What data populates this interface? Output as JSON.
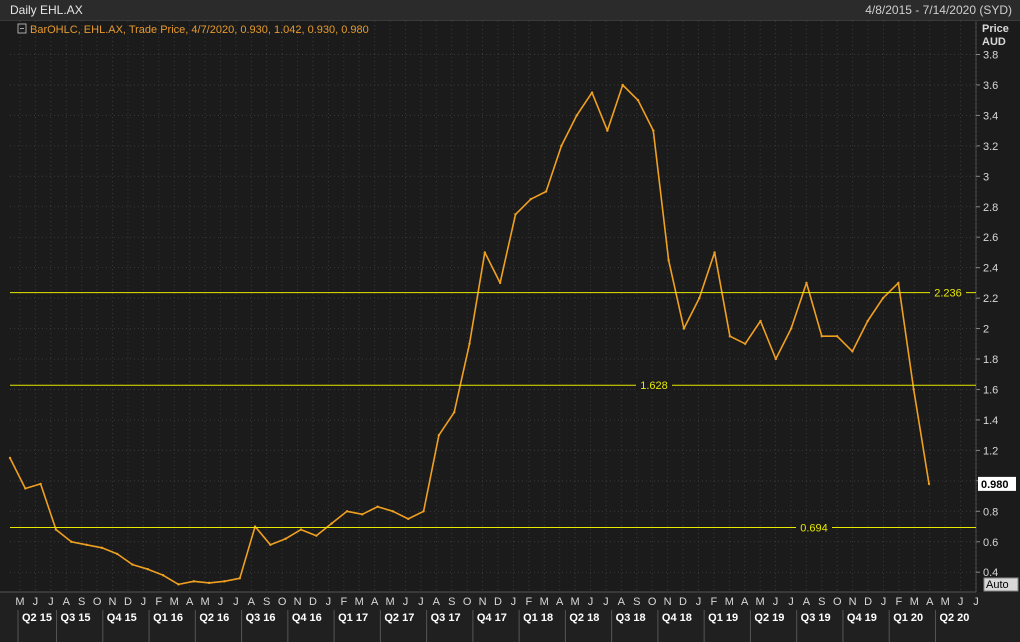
{
  "window": {
    "title": "Daily EHL.AX",
    "date_range": "4/8/2015 - 7/14/2020 (SYD)"
  },
  "legend": {
    "text": "BarOHLC, EHL.AX, Trade Price, 4/7/2020, 0.930, 1.042, 0.930, 0.980"
  },
  "axis": {
    "price_label": "Price",
    "currency_label": "AUD",
    "auto_button": "Auto",
    "last_price_tag": "0.980"
  },
  "colors": {
    "background": "#1b1b1b",
    "grid": "#3a3a3a",
    "series": "#f0a020",
    "level_line": "#e8e800",
    "price_tag": "#ffffff"
  },
  "chart_data": {
    "type": "line",
    "title": "Daily EHL.AX",
    "ylabel": "Price AUD",
    "ylim": [
      0.27,
      4.02
    ],
    "yticks": [
      0.4,
      0.6,
      0.8,
      1,
      1.2,
      1.4,
      1.6,
      1.8,
      2,
      2.2,
      2.4,
      2.6,
      2.8,
      3,
      3.2,
      3.4,
      3.6,
      3.8
    ],
    "ytick_labels": [
      "0.4",
      "0.6",
      "0.8",
      "1",
      "1.2",
      "1.4",
      "1.6",
      "1.8",
      "2",
      "2.2",
      "2.4",
      "2.6",
      "2.8",
      "3",
      "3.2",
      "3.4",
      "3.6",
      "3.8"
    ],
    "month_labels": [
      "M",
      "J",
      "J",
      "A",
      "S",
      "O",
      "N",
      "D",
      "J",
      "F",
      "M",
      "A",
      "M",
      "J",
      "J",
      "A",
      "S",
      "O",
      "N",
      "D",
      "J",
      "F",
      "M",
      "A",
      "M",
      "J",
      "J",
      "A",
      "S",
      "O",
      "N",
      "D",
      "J",
      "F",
      "M",
      "A",
      "M",
      "J",
      "J",
      "A",
      "S",
      "O",
      "N",
      "D",
      "J",
      "F",
      "M",
      "A",
      "M",
      "J",
      "J",
      "A",
      "S",
      "O",
      "N",
      "D",
      "J",
      "F",
      "M",
      "A",
      "M",
      "J",
      "J"
    ],
    "quarter_labels": [
      "Q2 15",
      "Q3 15",
      "Q4 15",
      "Q1 16",
      "Q2 16",
      "Q3 16",
      "Q4 16",
      "Q1 17",
      "Q2 17",
      "Q3 17",
      "Q4 17",
      "Q1 18",
      "Q2 18",
      "Q3 18",
      "Q4 18",
      "Q1 19",
      "Q2 19",
      "Q3 19",
      "Q4 19",
      "Q1 20",
      "Q2 20"
    ],
    "levels": [
      {
        "value": 2.236,
        "label": "2.236"
      },
      {
        "value": 1.628,
        "label": "1.628"
      },
      {
        "value": 0.694,
        "label": "0.694"
      }
    ],
    "series": [
      {
        "x": [
          "2015-04",
          "2015-05",
          "2015-06",
          "2015-07",
          "2015-08",
          "2015-09",
          "2015-10",
          "2015-11",
          "2015-12",
          "2016-01",
          "2016-02",
          "2016-03",
          "2016-04",
          "2016-05",
          "2016-06",
          "2016-07",
          "2016-08",
          "2016-09",
          "2016-10",
          "2016-11",
          "2016-12",
          "2017-01",
          "2017-02",
          "2017-03",
          "2017-04",
          "2017-05",
          "2017-06",
          "2017-07",
          "2017-08",
          "2017-09",
          "2017-10",
          "2017-11",
          "2017-12",
          "2018-01",
          "2018-02",
          "2018-03",
          "2018-04",
          "2018-05",
          "2018-06",
          "2018-07",
          "2018-08",
          "2018-09",
          "2018-10",
          "2018-11",
          "2018-12",
          "2019-01",
          "2019-02",
          "2019-03",
          "2019-04",
          "2019-05",
          "2019-06",
          "2019-07",
          "2019-08",
          "2019-09",
          "2019-10",
          "2019-11",
          "2019-12",
          "2020-01",
          "2020-02",
          "2020-03",
          "2020-04"
        ],
        "values": [
          1.15,
          0.95,
          0.98,
          0.68,
          0.6,
          0.58,
          0.56,
          0.52,
          0.45,
          0.42,
          0.38,
          0.32,
          0.34,
          0.33,
          0.34,
          0.36,
          0.7,
          0.58,
          0.62,
          0.68,
          0.64,
          0.72,
          0.8,
          0.78,
          0.83,
          0.8,
          0.75,
          0.8,
          1.3,
          1.45,
          1.9,
          2.5,
          2.3,
          2.75,
          2.85,
          2.9,
          3.2,
          3.4,
          3.55,
          3.3,
          3.6,
          3.5,
          3.3,
          2.45,
          2.0,
          2.2,
          2.5,
          1.95,
          1.9,
          2.05,
          1.8,
          2.0,
          2.3,
          1.95,
          1.95,
          1.85,
          2.05,
          2.2,
          2.3,
          1.6,
          0.98
        ]
      }
    ]
  }
}
